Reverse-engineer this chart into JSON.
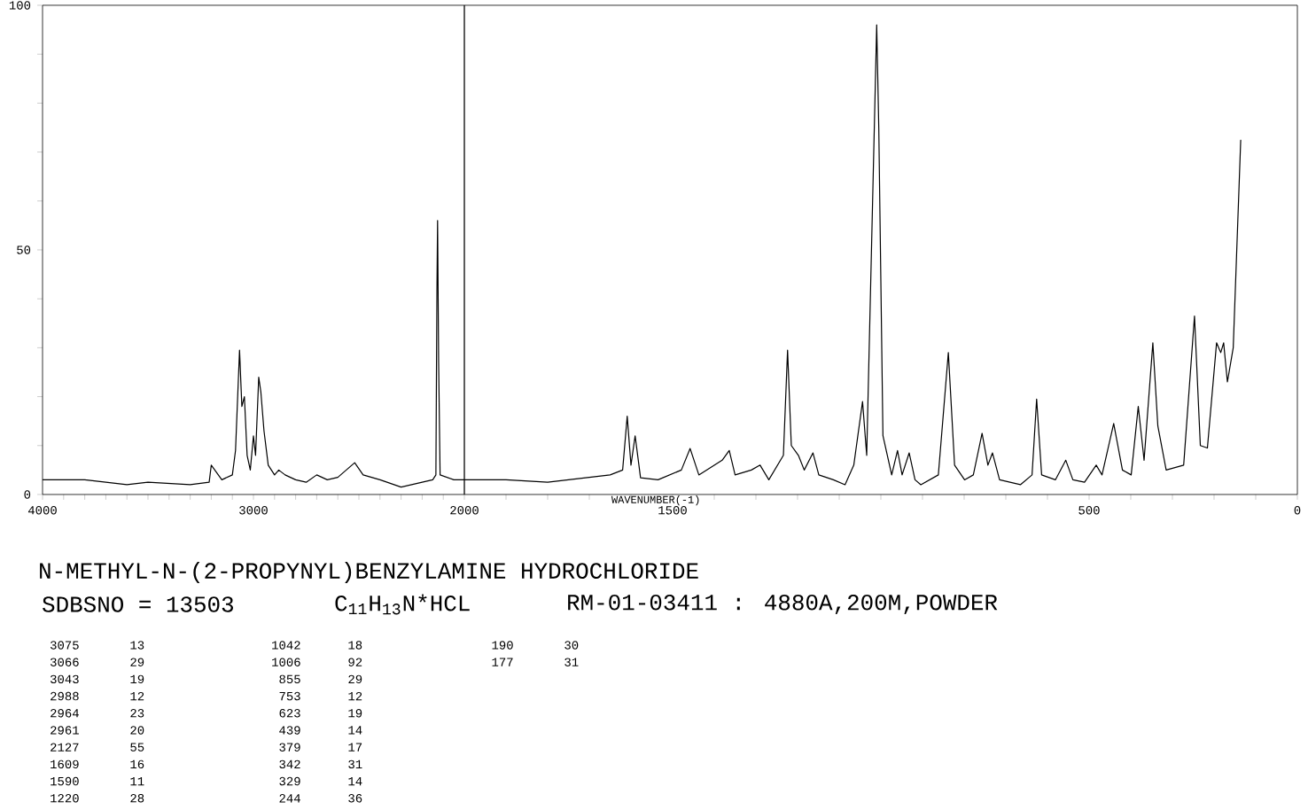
{
  "chart_data": [
    {
      "type": "line",
      "title": "N-METHYL-N-(2-PROPYNYL)BENZYLAMINE HYDROCHLORIDE",
      "color": "#000000",
      "marker": "none",
      "x": [
        4000,
        3800,
        3600,
        3500,
        3300,
        3210,
        3200,
        3150,
        3100,
        3085,
        3066,
        3055,
        3043,
        3030,
        3015,
        3000,
        2990,
        2975,
        2965,
        2950,
        2930,
        2900,
        2880,
        2850,
        2800,
        2750,
        2700,
        2650,
        2600,
        2520,
        2480,
        2400,
        2300,
        2200,
        2150,
        2135,
        2130,
        2127,
        2122,
        2115,
        2050,
        2000
      ],
      "values": [
        3,
        3,
        2,
        2.5,
        2,
        2.5,
        6,
        3,
        4,
        9,
        29.5,
        18,
        20,
        8,
        5,
        12,
        8,
        24,
        21,
        13,
        6,
        4,
        5,
        4,
        3,
        2.5,
        4,
        3,
        3.5,
        6.5,
        4,
        3,
        1.5,
        2.5,
        3,
        4,
        42,
        56,
        27,
        4,
        3,
        3
      ],
      "xlim": [
        4000,
        2000
      ],
      "ylim": [
        0,
        100
      ],
      "xticks": [
        4000,
        {
          "value": 3900,
          "label": null
        },
        {
          "value": 3800,
          "label": null
        },
        {
          "value": 3700,
          "label": null
        },
        {
          "value": 3600,
          "label": null
        },
        {
          "value": 3500,
          "label": null
        },
        {
          "value": 3400,
          "label": null
        },
        {
          "value": 3300,
          "label": null
        },
        {
          "value": 3200,
          "label": null
        },
        {
          "value": 3100,
          "label": null
        },
        3000,
        {
          "value": 2900,
          "label": null
        },
        {
          "value": 2800,
          "label": null
        },
        {
          "value": 2700,
          "label": null
        },
        {
          "value": 2600,
          "label": null
        },
        {
          "value": 2500,
          "label": null
        },
        {
          "value": 2400,
          "label": null
        },
        {
          "value": 2300,
          "label": null
        },
        {
          "value": 2200,
          "label": null
        },
        {
          "value": 2100,
          "label": null
        },
        2000
      ],
      "yticks": [
        0,
        {
          "value": 10,
          "label": null
        },
        {
          "value": 20,
          "label": null
        },
        {
          "value": 30,
          "label": null
        },
        {
          "value": 40,
          "label": null
        },
        50,
        {
          "value": 60,
          "label": null
        },
        {
          "value": 70,
          "label": null
        },
        {
          "value": 80,
          "label": null
        },
        {
          "value": 90,
          "label": null
        },
        100
      ],
      "annotations": [
        "SDBSNO = 13503",
        "C$_{11}$H$_{13}$N*HCL",
        "RM-01-03411 : 4880A,200M,POWDER",
        "3075",
        "13",
        "3066",
        "29",
        "3043",
        "19",
        "2988",
        "12",
        "2964",
        "23",
        "2961",
        "20",
        "2127",
        "55",
        "1609",
        "16",
        "1590",
        "11",
        "1220",
        "28",
        "1042",
        "18",
        "1006",
        "92",
        "855",
        "29",
        "753",
        "12",
        "623",
        "19",
        "439",
        "14",
        "379",
        "17",
        "342",
        "31",
        "329",
        "14",
        "244",
        "36",
        "190",
        "30",
        "177",
        "31"
      ]
    },
    {
      "type": "line",
      "xlabel": "WAVENUMBER(-1)",
      "color": "#000000",
      "marker": "none",
      "tick_labels": "x",
      "x": [
        2000,
        1900,
        1800,
        1700,
        1650,
        1620,
        1609,
        1600,
        1590,
        1577,
        1535,
        1479,
        1458,
        1437,
        1381,
        1364,
        1350,
        1311,
        1290,
        1269,
        1234,
        1224,
        1215,
        1198,
        1184,
        1163,
        1149,
        1114,
        1086,
        1065,
        1044,
        1034,
        1010,
        1005,
        995,
        974,
        960,
        949,
        932,
        918,
        904,
        862,
        838,
        823,
        799,
        778,
        757,
        743,
        732,
        715,
        665,
        637,
        626,
        614,
        581,
        556,
        539,
        511,
        483,
        469,
        441,
        420,
        399,
        382,
        368,
        347,
        335,
        315,
        273,
        247,
        233,
        216,
        194,
        184,
        177,
        168,
        154,
        140,
        136
      ],
      "values": [
        3,
        3,
        2.5,
        3.5,
        4,
        5,
        16,
        6,
        12,
        3.4,
        3,
        5,
        9.4,
        4,
        7,
        9,
        4,
        5,
        6,
        3,
        8,
        29.5,
        10,
        8,
        5,
        8.5,
        4,
        3,
        2,
        6,
        19,
        8,
        96,
        75,
        12,
        4,
        9,
        4,
        8.5,
        3,
        2,
        4,
        29,
        6,
        3,
        4,
        12.5,
        6,
        8.5,
        3,
        2,
        4,
        19.5,
        4,
        3,
        7,
        3,
        2.5,
        6,
        4,
        14.5,
        5,
        4,
        18,
        7,
        31,
        14,
        5,
        6,
        36.5,
        10,
        9.5,
        31,
        29,
        31,
        23,
        30,
        63,
        72.5
      ],
      "xlim": [
        2000,
        0
      ],
      "ylim": [
        0,
        100
      ],
      "xticks": [
        {
          "value": 1900,
          "label": null
        },
        {
          "value": 1800,
          "label": null
        },
        {
          "value": 1700,
          "label": null
        },
        {
          "value": 1600,
          "label": null
        },
        1500,
        {
          "value": 1400,
          "label": null
        },
        {
          "value": 1300,
          "label": null
        },
        {
          "value": 1200,
          "label": null
        },
        {
          "value": 1100,
          "label": null
        },
        {
          "value": 1000,
          "label": null
        },
        {
          "value": 900,
          "label": null
        },
        {
          "value": 800,
          "label": null
        },
        {
          "value": 700,
          "label": null
        },
        {
          "value": 600,
          "label": null
        },
        500,
        {
          "value": 400,
          "label": null
        },
        {
          "value": 300,
          "label": null
        },
        {
          "value": 200,
          "label": null
        },
        {
          "value": 100,
          "label": null
        },
        0
      ]
    }
  ]
}
